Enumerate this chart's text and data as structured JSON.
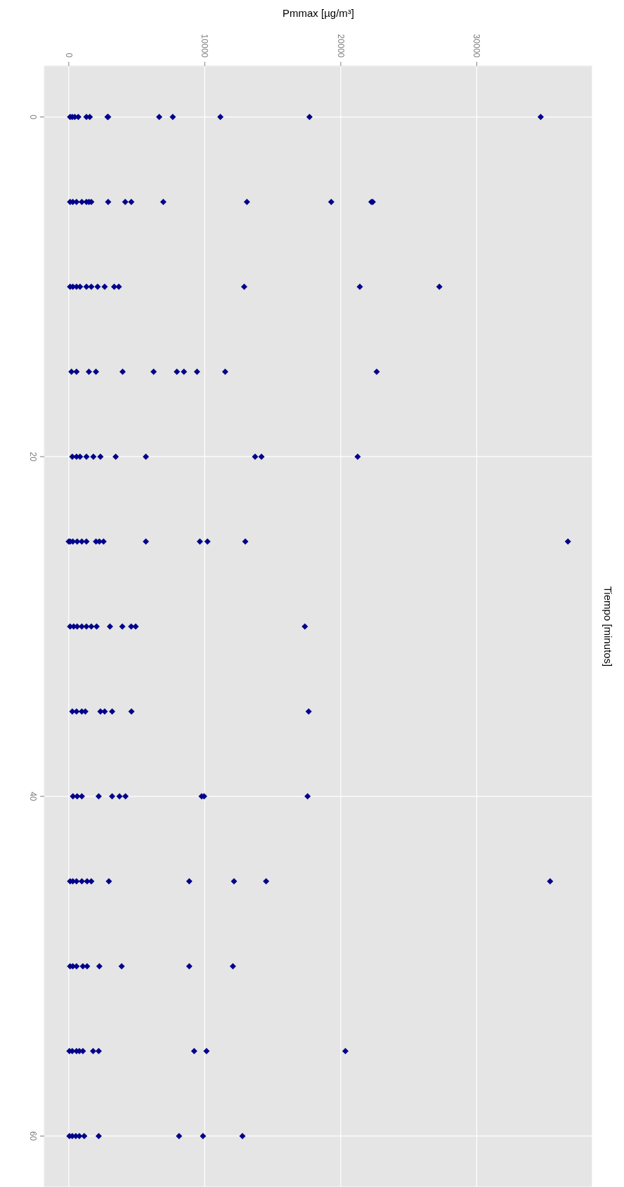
{
  "chart_data": {
    "type": "scatter",
    "xlabel": "Pmmax [µg/m³]",
    "ylabel": "Tiempo [minutos]",
    "x": [
      100,
      260,
      440,
      700,
      1300,
      1550,
      2850,
      2900,
      6650,
      7650,
      11150,
      17700,
      34700,
      100,
      300,
      570,
      960,
      1300,
      1480,
      1660,
      2900,
      4150,
      4600,
      6950,
      13100,
      19300,
      22250,
      22350,
      100,
      300,
      570,
      830,
      1300,
      1660,
      2120,
      2640,
      3340,
      3680,
      12900,
      21400,
      27250,
      200,
      570,
      1480,
      2000,
      3960,
      6240,
      7950,
      8470,
      9430,
      11500,
      22640,
      260,
      570,
      830,
      1300,
      1810,
      2330,
      3450,
      5670,
      13700,
      14170,
      21240,
      0,
      100,
      300,
      620,
      960,
      1300,
      2000,
      2250,
      2560,
      5670,
      9640,
      10200,
      12980,
      36700,
      100,
      360,
      620,
      960,
      1300,
      1660,
      2050,
      3030,
      3940,
      4590,
      4920,
      17360,
      260,
      570,
      960,
      1220,
      2330,
      2640,
      3190,
      4610,
      17640,
      310,
      620,
      960,
      2200,
      3190,
      3730,
      4170,
      9770,
      9950,
      17560,
      100,
      300,
      570,
      960,
      1350,
      1660,
      2950,
      8860,
      12150,
      14510,
      35390,
      100,
      300,
      570,
      1040,
      1350,
      2250,
      3890,
      8860,
      12070,
      50,
      260,
      570,
      780,
      1040,
      1790,
      2200,
      9220,
      10130,
      20340,
      50,
      260,
      520,
      780,
      1140,
      2200,
      8110,
      9870,
      12770
    ],
    "values": [
      0,
      0,
      0,
      0,
      0,
      0,
      0,
      0,
      0,
      0,
      0,
      0,
      0,
      5,
      5,
      5,
      5,
      5,
      5,
      5,
      5,
      5,
      5,
      5,
      5,
      5,
      5,
      5,
      10,
      10,
      10,
      10,
      10,
      10,
      10,
      10,
      10,
      10,
      10,
      10,
      10,
      15,
      15,
      15,
      15,
      15,
      15,
      15,
      15,
      15,
      15,
      15,
      20,
      20,
      20,
      20,
      20,
      20,
      20,
      20,
      20,
      20,
      20,
      25,
      25,
      25,
      25,
      25,
      25,
      25,
      25,
      25,
      25,
      25,
      25,
      25,
      25,
      30,
      30,
      30,
      30,
      30,
      30,
      30,
      30,
      30,
      30,
      30,
      30,
      35,
      35,
      35,
      35,
      35,
      35,
      35,
      35,
      35,
      40,
      40,
      40,
      40,
      40,
      40,
      40,
      40,
      40,
      40,
      45,
      45,
      45,
      45,
      45,
      45,
      45,
      45,
      45,
      45,
      45,
      50,
      50,
      50,
      50,
      50,
      50,
      50,
      50,
      50,
      55,
      55,
      55,
      55,
      55,
      55,
      55,
      55,
      55,
      55,
      60,
      60,
      60,
      60,
      60,
      60,
      60,
      60,
      60
    ],
    "color": "#00008b",
    "marker": "diamond",
    "xlim": [
      -1800,
      38500
    ],
    "xticks": [
      0,
      10000,
      20000,
      30000
    ],
    "ylim": [
      63,
      -3
    ],
    "yticks": [
      0,
      20,
      40,
      60
    ],
    "grid": true
  }
}
